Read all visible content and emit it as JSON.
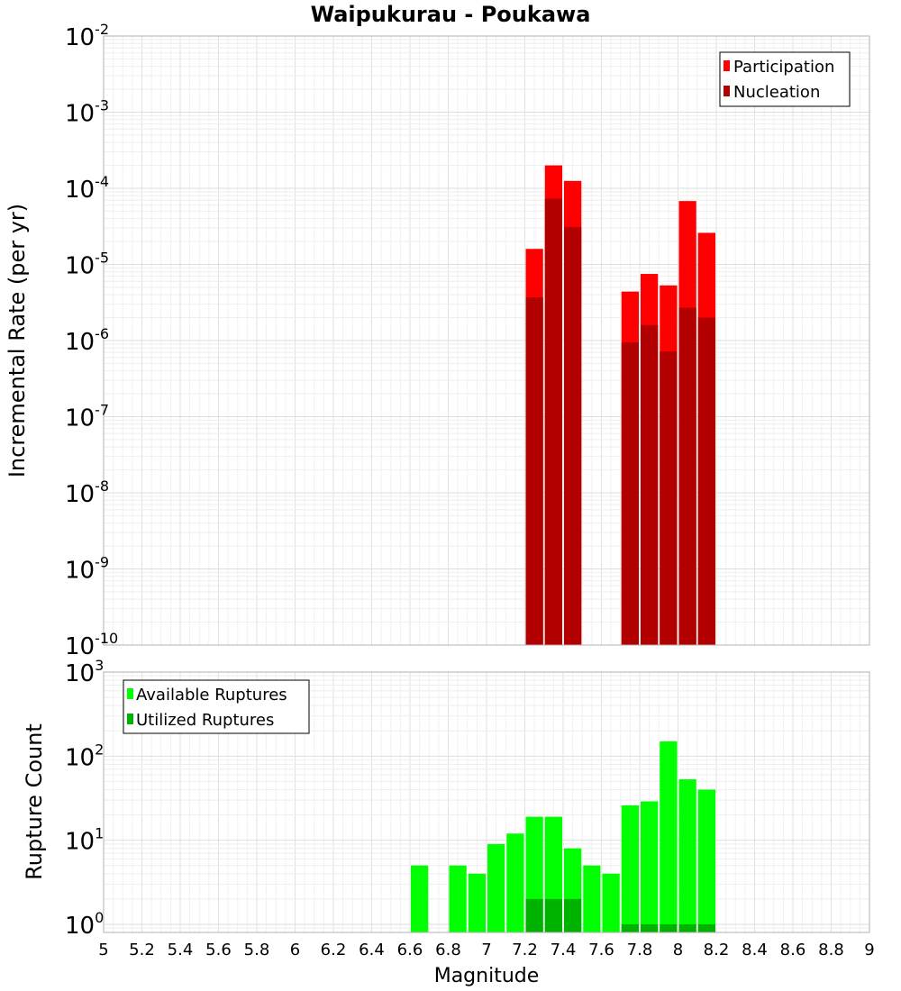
{
  "chart_data": [
    {
      "type": "bar",
      "title": "Waipukurau - Poukawa",
      "xlabel": "Magnitude",
      "ylabel": "Incremental Rate (per yr)",
      "yscale": "log",
      "xlim": [
        5,
        9
      ],
      "ylim": [
        1e-10,
        0.01
      ],
      "bin_width": 0.1,
      "y_ticks": [
        {
          "base": "10",
          "exp": "-10"
        },
        {
          "base": "10",
          "exp": "-9"
        },
        {
          "base": "10",
          "exp": "-8"
        },
        {
          "base": "10",
          "exp": "-7"
        },
        {
          "base": "10",
          "exp": "-6"
        },
        {
          "base": "10",
          "exp": "-5"
        },
        {
          "base": "10",
          "exp": "-4"
        },
        {
          "base": "10",
          "exp": "-3"
        },
        {
          "base": "10",
          "exp": "-2"
        }
      ],
      "legend_position": "top-right",
      "series": [
        {
          "name": "Participation",
          "color": "#ff0000",
          "x": [
            7.25,
            7.35,
            7.45,
            7.75,
            7.85,
            7.95,
            8.05,
            8.15
          ],
          "values": [
            1.6e-05,
            0.0002,
            0.000125,
            4.4e-06,
            7.5e-06,
            5.3e-06,
            6.8e-05,
            2.6e-05
          ]
        },
        {
          "name": "Nucleation",
          "color": "#b20000",
          "x": [
            7.25,
            7.35,
            7.45,
            7.75,
            7.85,
            7.95,
            8.05,
            8.15
          ],
          "values": [
            3.7e-06,
            7.3e-05,
            3.1e-05,
            9.5e-07,
            1.6e-06,
            7.2e-07,
            2.7e-06,
            2e-06
          ]
        }
      ]
    },
    {
      "type": "bar",
      "title": "",
      "xlabel": "Magnitude",
      "ylabel": "Rupture Count",
      "yscale": "log",
      "xlim": [
        5,
        9
      ],
      "ylim": [
        0.8,
        1000
      ],
      "bin_width": 0.1,
      "x_ticks": [
        "5",
        "5.2",
        "5.4",
        "5.6",
        "5.8",
        "6",
        "6.2",
        "6.4",
        "6.6",
        "6.8",
        "7",
        "7.2",
        "7.4",
        "7.6",
        "7.8",
        "8",
        "8.2",
        "8.4",
        "8.6",
        "8.8",
        "9"
      ],
      "y_ticks": [
        {
          "base": "10",
          "exp": "0"
        },
        {
          "base": "10",
          "exp": "1"
        },
        {
          "base": "10",
          "exp": "2"
        },
        {
          "base": "10",
          "exp": "3"
        }
      ],
      "legend_position": "top-left",
      "series": [
        {
          "name": "Available Ruptures",
          "color": "#00ff00",
          "x": [
            6.65,
            6.85,
            6.95,
            7.05,
            7.15,
            7.25,
            7.35,
            7.45,
            7.55,
            7.65,
            7.75,
            7.85,
            7.95,
            8.05,
            8.15
          ],
          "values": [
            5,
            5,
            4,
            9,
            12,
            19,
            19,
            8,
            5,
            4,
            26,
            29,
            150,
            53,
            40
          ]
        },
        {
          "name": "Utilized Ruptures",
          "color": "#00b200",
          "x": [
            7.25,
            7.35,
            7.45,
            7.75,
            7.85,
            7.95,
            8.05,
            8.15
          ],
          "values": [
            2,
            2,
            2,
            1,
            1,
            1,
            1,
            1
          ]
        }
      ]
    }
  ]
}
